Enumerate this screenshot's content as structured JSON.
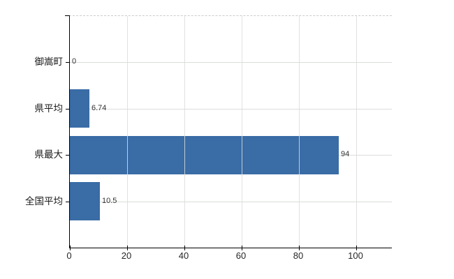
{
  "chart_data": {
    "type": "bar",
    "orientation": "horizontal",
    "title": "",
    "categories": [
      "御嵩町",
      "県平均",
      "県最大",
      "全国平均"
    ],
    "values": [
      0,
      6.74,
      94,
      10.5
    ],
    "value_labels": [
      "0",
      "6.74",
      "94",
      "10.5"
    ],
    "x_ticks": [
      0,
      20,
      40,
      60,
      80,
      100
    ],
    "x_tick_labels": [
      "0",
      "20",
      "40",
      "60",
      "80",
      "100"
    ],
    "xlim": [
      0,
      112.4
    ],
    "grid": true,
    "legend": "none",
    "colors": {
      "bar": "#3a6ca6",
      "axis": "#000000",
      "grid": "#d9ddd9",
      "plot_top_border": "#c9cdc9",
      "category_label": "#1a1a1a",
      "tick_label": "#262626",
      "value_label": "#333333",
      "background": "#ffffff"
    }
  }
}
